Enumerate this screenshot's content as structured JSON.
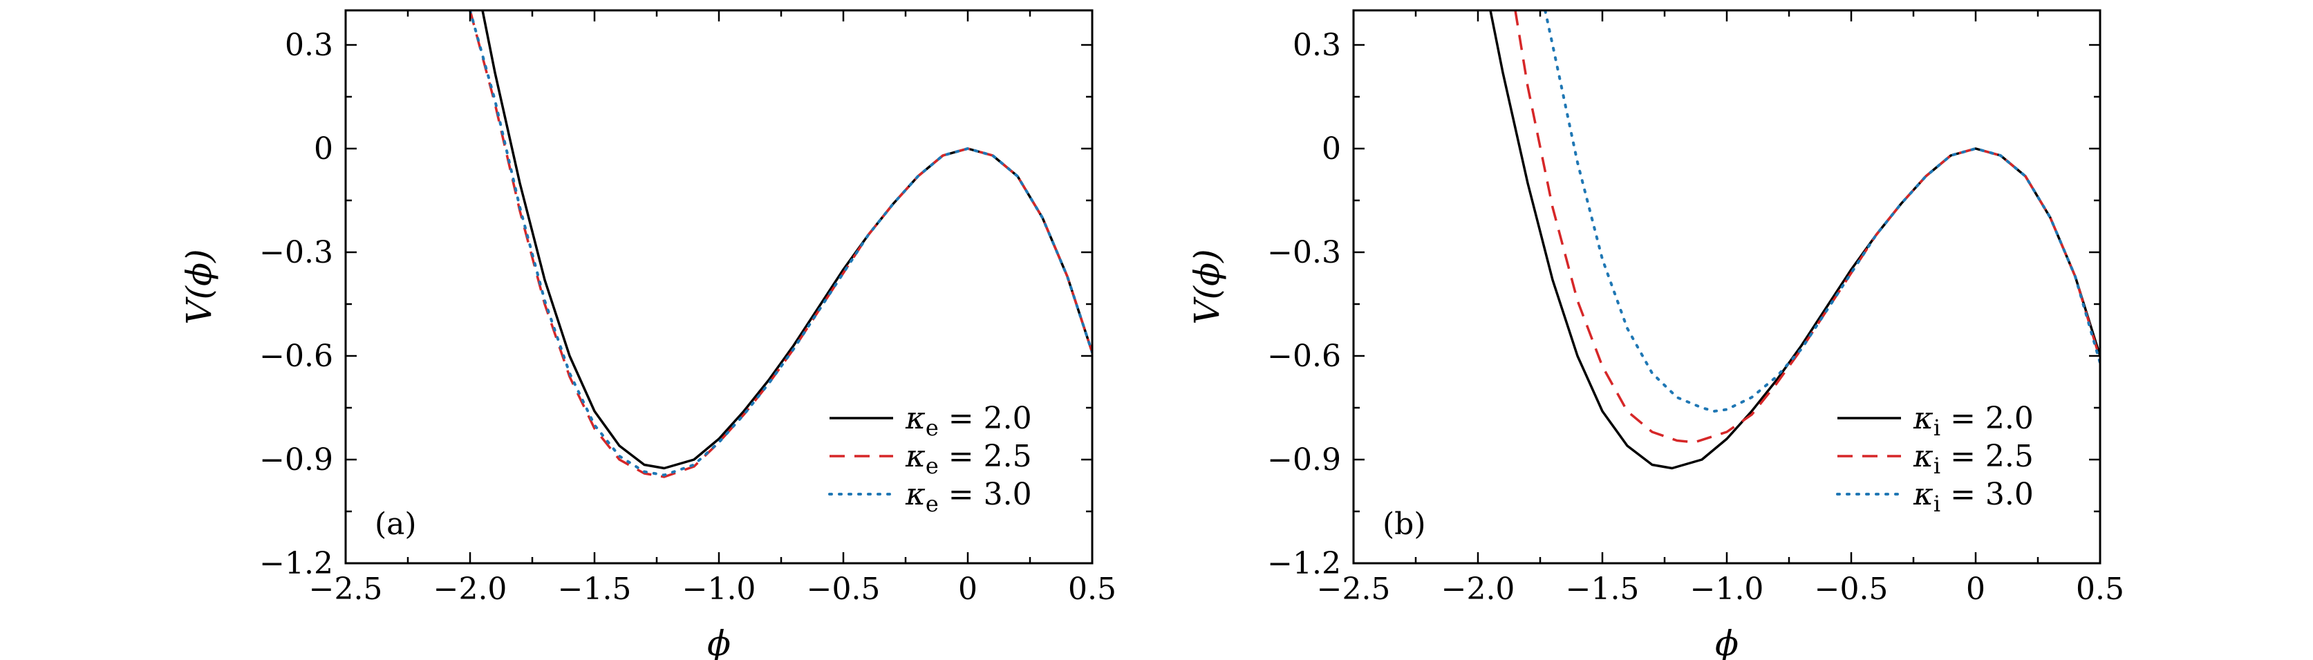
{
  "chart_data": [
    {
      "type": "line",
      "panel_label": "(a)",
      "xlabel": "ϕ",
      "ylabel": "V(ϕ)",
      "xlim": [
        -2.5,
        0.5
      ],
      "ylim": [
        -1.2,
        0.4
      ],
      "xticks": [
        -2.5,
        -2.0,
        -1.5,
        -1.0,
        -0.5,
        0,
        0.5
      ],
      "xtick_labels": [
        "−2.5",
        "−2.0",
        "−1.5",
        "−1.0",
        "−0.5",
        "0",
        "0.5"
      ],
      "yticks": [
        0.3,
        0,
        -0.3,
        -0.6,
        -0.9,
        -1.2
      ],
      "ytick_labels": [
        "0.3",
        "0",
        "−0.3",
        "−0.6",
        "−0.9",
        "−1.2"
      ],
      "grid": false,
      "legend_position": "bottom-right",
      "series": [
        {
          "name": "κe = 2.0",
          "legend": {
            "symbol": "κ",
            "sub": "e",
            "value": " = 2.0"
          },
          "color": "#000000",
          "style": "solid",
          "x": [
            -1.95,
            -1.9,
            -1.8,
            -1.7,
            -1.6,
            -1.5,
            -1.4,
            -1.3,
            -1.22,
            -1.1,
            -1.0,
            -0.9,
            -0.8,
            -0.7,
            -0.6,
            -0.5,
            -0.4,
            -0.3,
            -0.2,
            -0.1,
            0,
            0.1,
            0.2,
            0.3,
            0.4,
            0.5
          ],
          "y": [
            0.4,
            0.22,
            -0.1,
            -0.38,
            -0.6,
            -0.76,
            -0.86,
            -0.915,
            -0.925,
            -0.9,
            -0.84,
            -0.76,
            -0.67,
            -0.57,
            -0.46,
            -0.35,
            -0.25,
            -0.16,
            -0.08,
            -0.02,
            0,
            -0.02,
            -0.08,
            -0.2,
            -0.37,
            -0.59
          ]
        },
        {
          "name": "κe = 2.5",
          "legend": {
            "symbol": "κ",
            "sub": "e",
            "value": " = 2.5"
          },
          "color": "#d62728",
          "style": "dashed",
          "x": [
            -2.0,
            -1.9,
            -1.8,
            -1.7,
            -1.6,
            -1.5,
            -1.4,
            -1.3,
            -1.22,
            -1.1,
            -1.0,
            -0.9,
            -0.8,
            -0.7,
            -0.6,
            -0.5,
            -0.4,
            -0.3,
            -0.2,
            -0.1,
            0,
            0.1,
            0.2,
            0.3,
            0.4,
            0.5
          ],
          "y": [
            0.4,
            0.13,
            -0.18,
            -0.45,
            -0.66,
            -0.81,
            -0.9,
            -0.94,
            -0.95,
            -0.92,
            -0.85,
            -0.77,
            -0.68,
            -0.58,
            -0.47,
            -0.36,
            -0.25,
            -0.16,
            -0.08,
            -0.02,
            0,
            -0.02,
            -0.08,
            -0.2,
            -0.37,
            -0.59
          ]
        },
        {
          "name": "κe = 3.0",
          "legend": {
            "symbol": "κ",
            "sub": "e",
            "value": " = 3.0"
          },
          "color": "#1f77b4",
          "style": "dotted",
          "x": [
            -2.0,
            -1.9,
            -1.8,
            -1.7,
            -1.6,
            -1.5,
            -1.4,
            -1.3,
            -1.22,
            -1.1,
            -1.0,
            -0.9,
            -0.8,
            -0.7,
            -0.6,
            -0.5,
            -0.4,
            -0.3,
            -0.2,
            -0.1,
            0,
            0.1,
            0.2,
            0.3,
            0.4,
            0.5
          ],
          "y": [
            0.4,
            0.14,
            -0.17,
            -0.44,
            -0.65,
            -0.8,
            -0.89,
            -0.935,
            -0.945,
            -0.915,
            -0.85,
            -0.77,
            -0.68,
            -0.58,
            -0.47,
            -0.36,
            -0.25,
            -0.16,
            -0.08,
            -0.02,
            0,
            -0.02,
            -0.08,
            -0.2,
            -0.37,
            -0.59
          ]
        }
      ]
    },
    {
      "type": "line",
      "panel_label": "(b)",
      "xlabel": "ϕ",
      "ylabel": "V(ϕ)",
      "xlim": [
        -2.5,
        0.5
      ],
      "ylim": [
        -1.2,
        0.4
      ],
      "xticks": [
        -2.5,
        -2.0,
        -1.5,
        -1.0,
        -0.5,
        0,
        0.5
      ],
      "xtick_labels": [
        "−2.5",
        "−2.0",
        "−1.5",
        "−1.0",
        "−0.5",
        "0",
        "0.5"
      ],
      "yticks": [
        0.3,
        0,
        -0.3,
        -0.6,
        -0.9,
        -1.2
      ],
      "ytick_labels": [
        "0.3",
        "0",
        "−0.3",
        "−0.6",
        "−0.9",
        "−1.2"
      ],
      "grid": false,
      "legend_position": "bottom-right",
      "series": [
        {
          "name": "κi = 2.0",
          "legend": {
            "symbol": "κ",
            "sub": "i",
            "value": " = 2.0"
          },
          "color": "#000000",
          "style": "solid",
          "x": [
            -1.95,
            -1.9,
            -1.8,
            -1.7,
            -1.6,
            -1.5,
            -1.4,
            -1.3,
            -1.22,
            -1.1,
            -1.0,
            -0.9,
            -0.8,
            -0.7,
            -0.6,
            -0.5,
            -0.4,
            -0.3,
            -0.2,
            -0.1,
            0,
            0.1,
            0.2,
            0.3,
            0.4,
            0.5
          ],
          "y": [
            0.4,
            0.22,
            -0.1,
            -0.38,
            -0.6,
            -0.76,
            -0.86,
            -0.915,
            -0.925,
            -0.9,
            -0.84,
            -0.76,
            -0.67,
            -0.57,
            -0.46,
            -0.35,
            -0.25,
            -0.16,
            -0.08,
            -0.02,
            0,
            -0.02,
            -0.08,
            -0.2,
            -0.37,
            -0.6
          ]
        },
        {
          "name": "κi = 2.5",
          "legend": {
            "symbol": "κ",
            "sub": "i",
            "value": " = 2.5"
          },
          "color": "#d62728",
          "style": "dashed",
          "x": [
            -1.85,
            -1.8,
            -1.7,
            -1.6,
            -1.5,
            -1.4,
            -1.3,
            -1.2,
            -1.13,
            -1.0,
            -0.9,
            -0.8,
            -0.7,
            -0.6,
            -0.5,
            -0.4,
            -0.3,
            -0.2,
            -0.1,
            0,
            0.1,
            0.2,
            0.3,
            0.4,
            0.5
          ],
          "y": [
            0.4,
            0.18,
            -0.17,
            -0.44,
            -0.63,
            -0.76,
            -0.82,
            -0.845,
            -0.85,
            -0.82,
            -0.77,
            -0.68,
            -0.58,
            -0.47,
            -0.36,
            -0.25,
            -0.16,
            -0.08,
            -0.02,
            0,
            -0.02,
            -0.08,
            -0.2,
            -0.37,
            -0.61
          ]
        },
        {
          "name": "κi = 3.0",
          "legend": {
            "symbol": "κ",
            "sub": "i",
            "value": " = 3.0"
          },
          "color": "#1f77b4",
          "style": "dotted",
          "x": [
            -1.73,
            -1.7,
            -1.6,
            -1.5,
            -1.4,
            -1.3,
            -1.2,
            -1.1,
            -1.05,
            -1.0,
            -0.9,
            -0.8,
            -0.7,
            -0.6,
            -0.5,
            -0.4,
            -0.3,
            -0.2,
            -0.1,
            0,
            0.1,
            0.2,
            0.3,
            0.4,
            0.5
          ],
          "y": [
            0.4,
            0.3,
            -0.04,
            -0.32,
            -0.52,
            -0.65,
            -0.72,
            -0.75,
            -0.76,
            -0.755,
            -0.72,
            -0.66,
            -0.58,
            -0.47,
            -0.36,
            -0.25,
            -0.16,
            -0.08,
            -0.02,
            0,
            -0.02,
            -0.08,
            -0.2,
            -0.37,
            -0.62
          ]
        }
      ]
    }
  ]
}
